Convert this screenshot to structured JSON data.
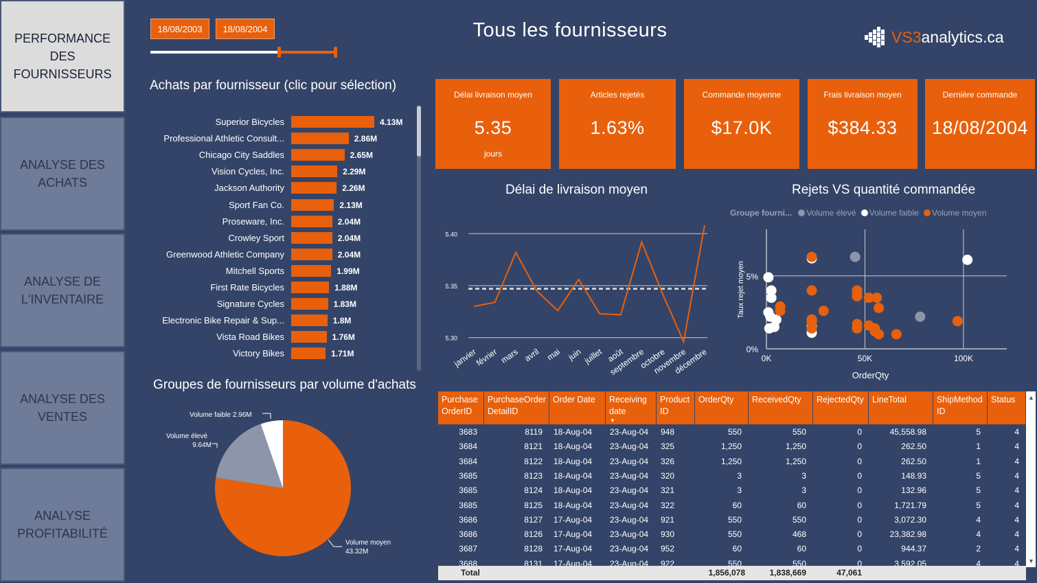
{
  "nav": [
    {
      "label": "PERFORMANCE DES\nFOURNISSEURS",
      "active": true
    },
    {
      "label": "ANALYSE DES\nACHATS",
      "active": false
    },
    {
      "label": "ANALYSE DE\nL'INVENTAIRE",
      "active": false
    },
    {
      "label": "ANALYSE DES\nVENTES",
      "active": false
    },
    {
      "label": "ANALYSE\nPROFITABILITÉ",
      "active": false
    }
  ],
  "date_filter": {
    "start": "18/08/2003",
    "end": "18/08/2004"
  },
  "header": {
    "title": "Tous les fournisseurs",
    "logo_brand": "VS3",
    "logo_rest": "analytics.ca"
  },
  "bar_section": {
    "title": "Achats par fournisseur (clic pour sélection)"
  },
  "pie_section": {
    "title": "Groupes de fournisseurs par volume d'achats"
  },
  "kpis": [
    {
      "label": "Délai livraison moyen",
      "value": "5.35",
      "sub": "jours"
    },
    {
      "label": "Articles rejetés",
      "value": "1.63%",
      "sub": ""
    },
    {
      "label": "Commande moyenne",
      "value": "$17.0K",
      "sub": ""
    },
    {
      "label": "Frais livraison moyen",
      "value": "$384.33",
      "sub": ""
    },
    {
      "label": "Dernière commande",
      "value": "18/08/2004",
      "sub": ""
    }
  ],
  "line_section": {
    "title": "Délai de livraison moyen"
  },
  "scatter_section": {
    "title": "Rejets VS quantité commandée",
    "legend_title": "Groupe fourni...",
    "legend": [
      "Volume élevé",
      "Volume faible",
      "Volume moyen"
    ]
  },
  "chart_data": [
    {
      "type": "bar",
      "title": "Achats par fournisseur (clic pour sélection)",
      "categories": [
        "Superior Bicycles",
        "Professional Athletic Consult...",
        "Chicago City Saddles",
        "Vision Cycles, Inc.",
        "Jackson Authority",
        "Sport Fan Co.",
        "Proseware, Inc.",
        "Crowley Sport",
        "Greenwood Athletic Company",
        "Mitchell Sports",
        "First Rate Bicycles",
        "Signature Cycles",
        "Electronic Bike Repair & Sup...",
        "Vista Road Bikes",
        "Victory Bikes"
      ],
      "values": [
        4.13,
        2.86,
        2.65,
        2.29,
        2.26,
        2.13,
        2.04,
        2.04,
        2.04,
        1.99,
        1.88,
        1.83,
        1.8,
        1.76,
        1.71
      ],
      "labels": [
        "4.13M",
        "2.86M",
        "2.65M",
        "2.29M",
        "2.26M",
        "2.13M",
        "2.04M",
        "2.04M",
        "2.04M",
        "1.99M",
        "1.88M",
        "1.83M",
        "1.8M",
        "1.76M",
        "1.71M"
      ]
    },
    {
      "type": "pie",
      "title": "Groupes de fournisseurs par volume d'achats",
      "slices": [
        {
          "name": "Volume moyen",
          "value": 43.32,
          "label": "43.32M",
          "color": "#e8600c"
        },
        {
          "name": "Volume élevé",
          "value": 9.64,
          "label": "9.64M",
          "color": "#8c95aa"
        },
        {
          "name": "Volume faible",
          "value": 2.96,
          "label": "2.96M",
          "color": "#ffffff"
        }
      ]
    },
    {
      "type": "line",
      "title": "Délai de livraison moyen",
      "categories": [
        "janvier",
        "février",
        "mars",
        "avril",
        "mai",
        "juin",
        "juillet",
        "août",
        "septembre",
        "octobre",
        "novembre",
        "décembre"
      ],
      "values": [
        5.33,
        5.334,
        5.382,
        5.345,
        5.326,
        5.356,
        5.323,
        5.322,
        5.392,
        5.342,
        5.296,
        5.408
      ],
      "average": 5.347,
      "ylim": [
        5.28,
        5.42
      ],
      "yticks": [
        "5.30",
        "5.35",
        "5.40"
      ]
    },
    {
      "type": "scatter",
      "title": "Rejets VS quantité commandée",
      "xlabel": "OrderQty",
      "ylabel": "Taux rejet moyen",
      "xticks": [
        "0K",
        "50K",
        "100K"
      ],
      "yticks": [
        "0%",
        "5%"
      ],
      "xlim": [
        0,
        115000
      ],
      "ylim": [
        0,
        0.08
      ],
      "series": [
        {
          "name": "Volume élevé",
          "color": "#8c95aa",
          "points": [
            [
              45000,
              0.063
            ],
            [
              78000,
              0.022
            ]
          ]
        },
        {
          "name": "Volume faible",
          "color": "#ffffff",
          "points": [
            [
              1000,
              0.049
            ],
            [
              2500,
              0.04
            ],
            [
              2500,
              0.035
            ],
            [
              1000,
              0.025
            ],
            [
              2000,
              0.022
            ],
            [
              5000,
              0.02
            ],
            [
              4000,
              0.015
            ],
            [
              1500,
              0.014
            ],
            [
              23000,
              0.02
            ],
            [
              23000,
              0.015
            ],
            [
              23000,
              0.011
            ],
            [
              102000,
              0.061
            ],
            [
              23000,
              0.062
            ]
          ]
        },
        {
          "name": "Volume moyen",
          "color": "#e8600c",
          "points": [
            [
              7000,
              0.026
            ],
            [
              7000,
              0.029
            ],
            [
              23000,
              0.063
            ],
            [
              23000,
              0.04
            ],
            [
              29000,
              0.026
            ],
            [
              23000,
              0.02
            ],
            [
              23000,
              0.018
            ],
            [
              23000,
              0.014
            ],
            [
              46000,
              0.04
            ],
            [
              46000,
              0.036
            ],
            [
              46000,
              0.038
            ],
            [
              52000,
              0.035
            ],
            [
              56000,
              0.035
            ],
            [
              57000,
              0.028
            ],
            [
              46000,
              0.017
            ],
            [
              46000,
              0.014
            ],
            [
              52000,
              0.016
            ],
            [
              55000,
              0.014
            ],
            [
              57000,
              0.01
            ],
            [
              66000,
              0.01
            ],
            [
              97000,
              0.019
            ],
            [
              55000,
              0.012
            ]
          ]
        }
      ]
    }
  ],
  "table": {
    "headers": [
      "Purchase OrderID",
      "PurchaseOrder DetailID",
      "Order Date",
      "Receiving date",
      "Product ID",
      "OrderQty",
      "ReceivedQty",
      "RejectedQty",
      "LineTotal",
      "ShipMethod ID",
      "Status"
    ],
    "rows": [
      [
        "3683",
        "8119",
        "18-Aug-04",
        "23-Aug-04",
        "948",
        "550",
        "550",
        "0",
        "45,558.98",
        "5",
        "4"
      ],
      [
        "3684",
        "8121",
        "18-Aug-04",
        "23-Aug-04",
        "325",
        "1,250",
        "1,250",
        "0",
        "262.50",
        "1",
        "4"
      ],
      [
        "3684",
        "8122",
        "18-Aug-04",
        "23-Aug-04",
        "326",
        "1,250",
        "1,250",
        "0",
        "262.50",
        "1",
        "4"
      ],
      [
        "3685",
        "8123",
        "18-Aug-04",
        "23-Aug-04",
        "320",
        "3",
        "3",
        "0",
        "148.93",
        "5",
        "4"
      ],
      [
        "3685",
        "8124",
        "18-Aug-04",
        "23-Aug-04",
        "321",
        "3",
        "3",
        "0",
        "132.96",
        "5",
        "4"
      ],
      [
        "3685",
        "8125",
        "18-Aug-04",
        "23-Aug-04",
        "322",
        "60",
        "60",
        "0",
        "1,721.79",
        "5",
        "4"
      ],
      [
        "3686",
        "8127",
        "17-Aug-04",
        "23-Aug-04",
        "921",
        "550",
        "550",
        "0",
        "3,072.30",
        "4",
        "4"
      ],
      [
        "3686",
        "8126",
        "17-Aug-04",
        "23-Aug-04",
        "930",
        "550",
        "468",
        "0",
        "23,382.98",
        "4",
        "4"
      ],
      [
        "3687",
        "8128",
        "17-Aug-04",
        "23-Aug-04",
        "952",
        "60",
        "60",
        "0",
        "944.37",
        "2",
        "4"
      ],
      [
        "3688",
        "8131",
        "17-Aug-04",
        "23-Aug-04",
        "922",
        "550",
        "550",
        "0",
        "3,592.05",
        "4",
        "4"
      ]
    ],
    "total": {
      "label": "Total",
      "orderqty": "1,856,078",
      "receivedqty": "1,838,669",
      "rejectedqty": "47,061"
    }
  },
  "colors": {
    "background": "#344468",
    "accent": "#e8600c",
    "nav": "#6e7b99",
    "nav_active": "#dcdcdc"
  }
}
